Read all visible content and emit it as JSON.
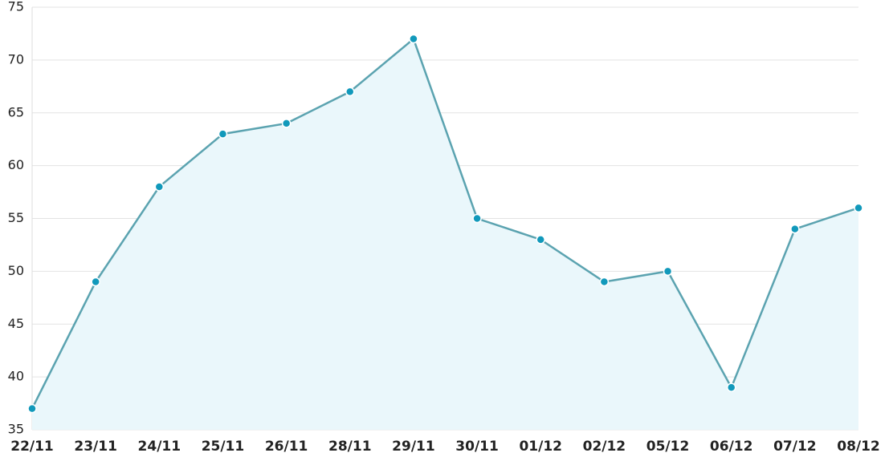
{
  "chart_data": {
    "type": "area",
    "categories": [
      "22/11",
      "23/11",
      "24/11",
      "25/11",
      "26/11",
      "28/11",
      "29/11",
      "30/11",
      "01/12",
      "02/12",
      "05/12",
      "06/12",
      "07/12",
      "08/12"
    ],
    "values": [
      37,
      49,
      58,
      63,
      64,
      67,
      72,
      55,
      53,
      49,
      50,
      39,
      54,
      56
    ],
    "color": "#5ba3b0",
    "fill_color": "#eaf7fb",
    "marker_color": "#1199bb",
    "ylim": [
      35,
      75
    ],
    "yticks": [
      35,
      40,
      45,
      50,
      55,
      60,
      65,
      70,
      75
    ],
    "grid": true
  }
}
